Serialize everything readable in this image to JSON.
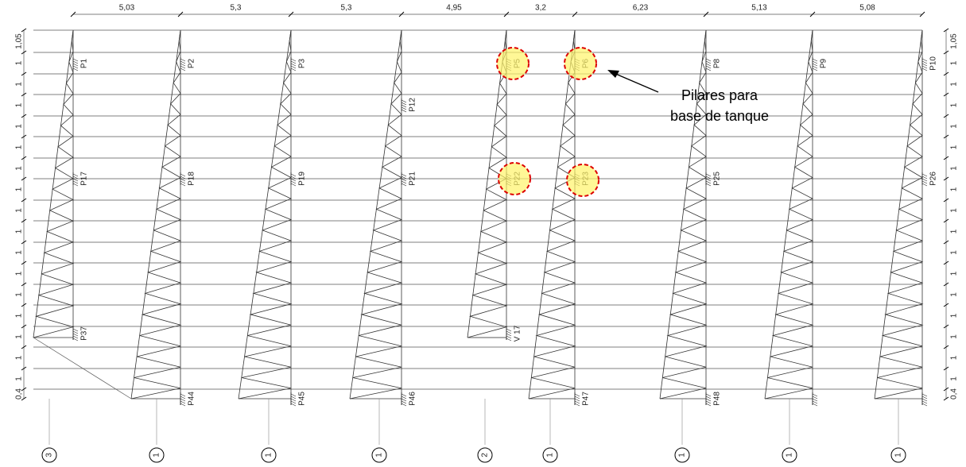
{
  "dimensions": [
    "5,03",
    "5,3",
    "5,3",
    "4,95",
    "3,2",
    "6,23",
    "5,13",
    "5,08"
  ],
  "side_labels": [
    "1,05",
    "1",
    "1",
    "1",
    "1",
    "1",
    "1",
    "1",
    "1",
    "1",
    "1",
    "1",
    "1",
    "1",
    "1",
    "1",
    "1",
    "0,4"
  ],
  "pillars": [
    "P1",
    "P2",
    "P3",
    "P5",
    "P6",
    "P8",
    "P9",
    "P10",
    "P12",
    "P17",
    "P18",
    "P19",
    "P21",
    "P22",
    "P23",
    "P25",
    "P26",
    "P37",
    "V 17",
    "P44",
    "P45",
    "P46",
    "P47",
    "P48"
  ],
  "grid_markers": [
    "3",
    "1",
    "1",
    "1",
    "2",
    "1",
    "1",
    "1",
    "1"
  ],
  "annotation": [
    "Pilares para",
    "base de tanque"
  ]
}
